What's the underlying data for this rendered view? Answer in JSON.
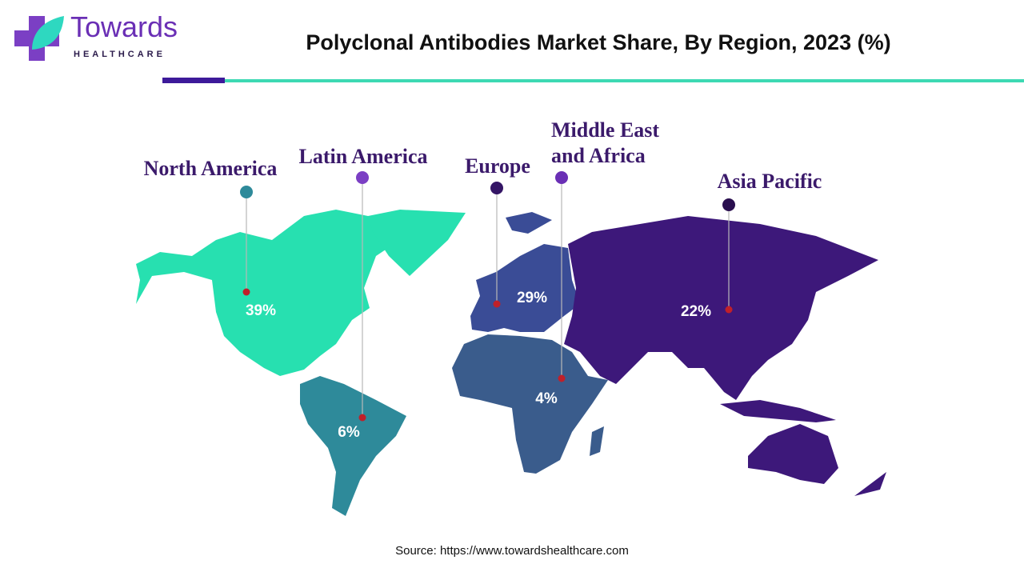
{
  "header": {
    "logo_name": "Towards",
    "logo_sub": "HEALTHCARE"
  },
  "chart_data": {
    "type": "map",
    "title": "Polyclonal Antibodies Market Share, By Region, 2023 (%)",
    "categories": [
      "North America",
      "Latin America",
      "Europe",
      "Middle East and Africa",
      "Asia Pacific"
    ],
    "values": [
      39,
      6,
      29,
      4,
      22
    ],
    "value_labels": [
      "39%",
      "6%",
      "29%",
      "4%",
      "22%"
    ],
    "colors": [
      "#27e0b0",
      "#2e8a9a",
      "#3a4c96",
      "#3a5c8c",
      "#3d187a"
    ],
    "pin_colors": [
      "#2e8a9a",
      "#7b3fc4",
      "#341565",
      "#6a2fb5",
      "#2a0f4f"
    ],
    "source": "Source: https://www.towardshealthcare.com"
  }
}
